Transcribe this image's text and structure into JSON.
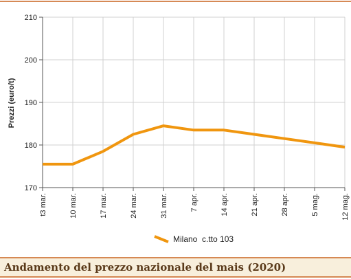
{
  "chart_data": {
    "type": "line",
    "title": "Andamento del prezzo nazionale del mais (2020)",
    "y_label": "Prezzi (euro/t)",
    "categories": [
      "t3 mar.",
      "10 mar.",
      "17 mar.",
      "24 mar.",
      "31 mar.",
      "7 apr.",
      "14 apr.",
      "21 apr.",
      "28 apr.",
      "5 mag.",
      "12 mag."
    ],
    "series": [
      {
        "name": "Milano  c.tto 103",
        "color": "#f0960f",
        "values": [
          175.5,
          175.5,
          178.5,
          182.5,
          184.5,
          183.5,
          183.5,
          182.5,
          181.5,
          180.5,
          179.5
        ]
      }
    ],
    "ylim": [
      170,
      210
    ],
    "yticks": [
      170,
      180,
      190,
      200,
      210
    ],
    "grid": true
  }
}
